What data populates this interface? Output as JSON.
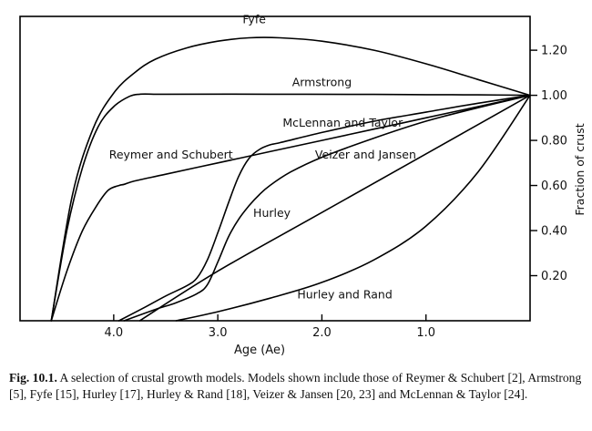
{
  "chart_data": {
    "type": "line",
    "xlabel": "Age (Ae)",
    "ylabel": "Fraction of crust",
    "xlim": [
      4.9,
      0.0
    ],
    "ylim": [
      0.0,
      1.35
    ],
    "x_ticks": [
      4.0,
      3.0,
      2.0,
      1.0
    ],
    "x_tick_labels": [
      "4.0",
      "3.0",
      "2.0",
      "1.0"
    ],
    "y_ticks": [
      0.2,
      0.4,
      0.6,
      0.8,
      1.0,
      1.2
    ],
    "y_tick_labels": [
      "0.20",
      "0.40",
      "0.60",
      "0.80",
      "1.00",
      "1.20"
    ],
    "series": [
      {
        "name": "Fyfe",
        "label_at": [
          2.65,
          1.32
        ],
        "x": [
          4.6,
          4.4,
          4.2,
          4.0,
          3.8,
          3.6,
          3.3,
          3.0,
          2.7,
          2.4,
          2.0,
          1.5,
          1.0,
          0.5,
          0.0
        ],
        "y": [
          0.0,
          0.55,
          0.85,
          1.01,
          1.1,
          1.16,
          1.21,
          1.24,
          1.255,
          1.255,
          1.24,
          1.2,
          1.14,
          1.07,
          1.0
        ]
      },
      {
        "name": "Armstrong",
        "label_at": [
          2.0,
          1.04
        ],
        "x": [
          4.6,
          4.45,
          4.3,
          4.15,
          4.0,
          3.85,
          3.75,
          3.6,
          3.5,
          2.5,
          1.5,
          1.0,
          0.5,
          0.0
        ],
        "y": [
          0.0,
          0.4,
          0.68,
          0.86,
          0.95,
          0.995,
          1.005,
          1.005,
          1.005,
          1.005,
          1.004,
          1.003,
          1.002,
          1.0
        ]
      },
      {
        "name": "McLennan and Taylor",
        "label_at": [
          1.8,
          0.86
        ],
        "x": [
          3.95,
          3.7,
          3.5,
          3.3,
          3.2,
          3.1,
          3.0,
          2.9,
          2.8,
          2.7,
          2.6,
          2.5,
          2.4,
          2.0,
          1.5,
          1.0,
          0.5,
          0.0
        ],
        "y": [
          0.0,
          0.06,
          0.11,
          0.155,
          0.19,
          0.27,
          0.39,
          0.52,
          0.64,
          0.72,
          0.76,
          0.78,
          0.79,
          0.835,
          0.885,
          0.925,
          0.965,
          1.0
        ]
      },
      {
        "name": "Reymer and Schubert",
        "label_at": [
          3.45,
          0.72
        ],
        "x": [
          4.6,
          4.45,
          4.3,
          4.15,
          4.05,
          3.95,
          3.9,
          3.8,
          3.5,
          3.0,
          2.5,
          2.0,
          1.5,
          1.0,
          0.5,
          0.0
        ],
        "y": [
          0.0,
          0.22,
          0.4,
          0.52,
          0.58,
          0.6,
          0.605,
          0.62,
          0.65,
          0.7,
          0.75,
          0.8,
          0.85,
          0.9,
          0.95,
          1.0
        ]
      },
      {
        "name": "Veizer and Jansen",
        "label_at": [
          1.58,
          0.72
        ],
        "x": [
          3.9,
          3.6,
          3.4,
          3.2,
          3.1,
          3.0,
          2.9,
          2.8,
          2.7,
          2.6,
          2.5,
          2.3,
          2.0,
          1.5,
          1.0,
          0.5,
          0.0
        ],
        "y": [
          0.0,
          0.05,
          0.08,
          0.12,
          0.16,
          0.26,
          0.37,
          0.45,
          0.51,
          0.56,
          0.6,
          0.66,
          0.725,
          0.81,
          0.885,
          0.945,
          1.0
        ]
      },
      {
        "name": "Hurley",
        "label_at": [
          2.48,
          0.46
        ],
        "x": [
          3.75,
          3.0,
          2.0,
          1.0,
          0.0
        ],
        "y": [
          0.0,
          0.22,
          0.48,
          0.74,
          1.0
        ]
      },
      {
        "name": "Hurley and Rand",
        "label_at": [
          1.78,
          0.1
        ],
        "x": [
          3.4,
          3.0,
          2.5,
          2.0,
          1.5,
          1.0,
          0.5,
          0.0
        ],
        "y": [
          0.0,
          0.04,
          0.1,
          0.17,
          0.27,
          0.42,
          0.66,
          1.0
        ]
      }
    ]
  },
  "caption": {
    "label": "Fig. 10.1.",
    "text": "A selection of crustal growth models. Models shown include those of Reymer & Schubert [2], Armstrong [5], Fyfe [15], Hurley [17], Hurley & Rand [18], Veizer & Jansen [20, 23] and McLennan & Taylor [24]."
  }
}
